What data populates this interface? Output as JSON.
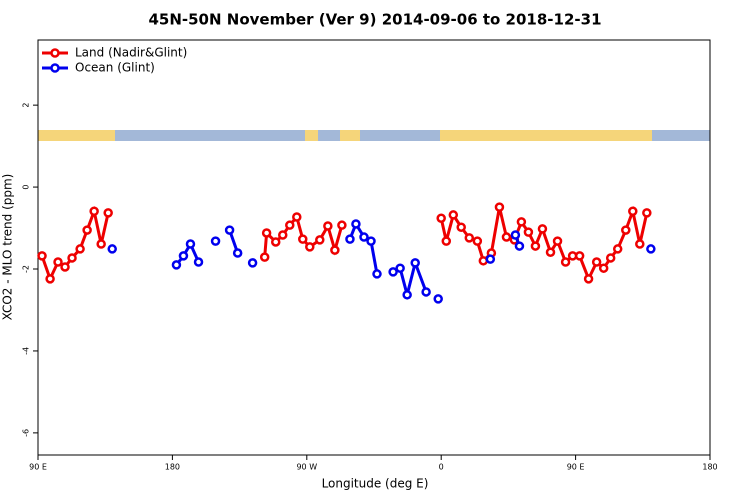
{
  "chart_data": {
    "type": "line",
    "title": "45N-50N November (Ver 9)   2014-09-06 to 2018-12-31",
    "x_label": "Longitude (deg E)",
    "y_label": "XCO2 - MLO trend (ppm)",
    "xlim": [
      90,
      540
    ],
    "xticks": [
      {
        "value": 90,
        "label": "90 E"
      },
      180,
      {
        "value": 270,
        "label": "90 W"
      },
      {
        "value": 360,
        "label": "0"
      },
      {
        "value": 450,
        "label": "90 E"
      },
      {
        "value": 540,
        "label": "180"
      }
    ],
    "ylim": [
      -6.54,
      3.59
    ],
    "yticks": [
      -6,
      -4,
      -2,
      0,
      2
    ],
    "legend": "top-left",
    "series": [
      {
        "name": "Land (Nadir&Glint)",
        "color": "#ee0000",
        "x": [
          92.7,
          98.1,
          103.4,
          108.1,
          112.8,
          118.2,
          122.9,
          127.6,
          132.3,
          137.0,
          null,
          241.8,
          243.1,
          249.2,
          253.9,
          258.6,
          263.3,
          267.3,
          272.0,
          278.7,
          284.1,
          288.8,
          293.5,
          null,
          360.0,
          363.4,
          368.1,
          373.4,
          378.8,
          384.2,
          388.2,
          393.6,
          399.0,
          403.7,
          409.0,
          413.7,
          418.4,
          423.1,
          427.8,
          433.2,
          437.9,
          443.3,
          448.0,
          452.7,
          458.7,
          464.1,
          468.8,
          473.5,
          478.2,
          483.6,
          488.3,
          493.0,
          497.7
        ],
        "values": [
          -1.68,
          -2.24,
          -1.83,
          -1.95,
          -1.73,
          -1.51,
          -1.05,
          -0.59,
          -1.39,
          -0.63,
          null,
          -1.71,
          -1.12,
          -1.34,
          -1.17,
          -0.93,
          -0.73,
          -1.27,
          -1.46,
          -1.29,
          -0.95,
          -1.54,
          -0.93,
          null,
          -0.76,
          -1.32,
          -0.68,
          -0.98,
          -1.24,
          -1.32,
          -1.8,
          -1.61,
          -0.49,
          -1.22,
          -1.29,
          -0.85,
          -1.1,
          -1.44,
          -1.02,
          -1.59,
          -1.32,
          -1.83,
          -1.68,
          -1.68,
          -2.24,
          -1.83,
          -1.98,
          -1.73,
          -1.51,
          -1.05,
          -0.59,
          -1.39,
          -0.63
        ]
      },
      {
        "name": "Ocean (Glint)",
        "color": "#0000ee",
        "x": [
          139.7,
          null,
          182.7,
          187.4,
          192.1,
          197.5,
          null,
          208.9,
          null,
          218.3,
          223.7,
          null,
          233.7,
          null,
          298.9,
          302.9,
          308.3,
          313.0,
          317.0,
          null,
          327.8,
          332.5,
          337.2,
          342.6,
          349.9,
          null,
          358.0,
          null,
          392.9,
          null,
          409.7,
          412.4,
          null,
          500.4
        ],
        "values": [
          -1.51,
          null,
          -1.9,
          -1.68,
          -1.39,
          -1.83,
          null,
          -1.32,
          null,
          -1.05,
          -1.61,
          null,
          -1.85,
          null,
          -1.27,
          -0.9,
          -1.22,
          -1.32,
          -2.12,
          null,
          -2.07,
          -1.98,
          -2.63,
          -1.85,
          -2.56,
          null,
          -2.73,
          null,
          -1.76,
          null,
          -1.17,
          -1.44,
          null,
          -1.51
        ]
      }
    ]
  }
}
